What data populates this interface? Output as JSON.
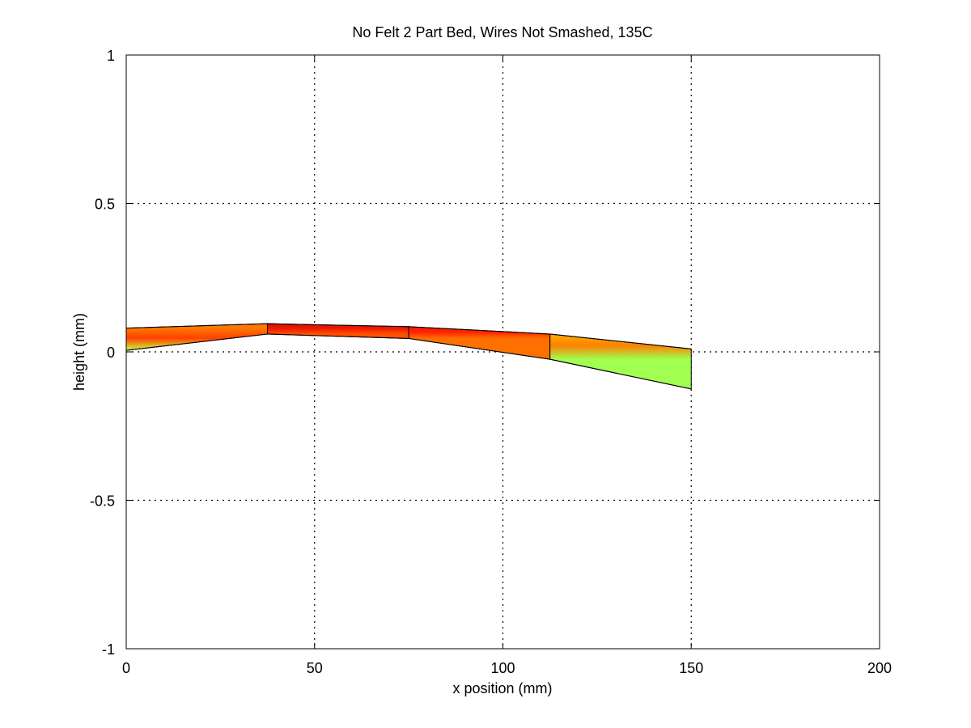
{
  "chart_data": {
    "type": "area",
    "title": "No Felt 2 Part  Bed, Wires Not Smashed, 135C",
    "xlabel": "x position (mm)",
    "ylabel": "height (mm)",
    "xlim": [
      0,
      200
    ],
    "ylim": [
      -1,
      1
    ],
    "xticks": [
      0,
      50,
      100,
      150,
      200
    ],
    "yticks": [
      -1,
      -0.5,
      0,
      0.5,
      1
    ],
    "xtick_labels": [
      "0",
      "50",
      "100",
      "150",
      "200"
    ],
    "ytick_labels": [
      "-1",
      "-0.5",
      "0",
      "0.5",
      "1"
    ],
    "grid": true,
    "grid_style": "dotted",
    "x_nodes": [
      0,
      37.5,
      75,
      112.5,
      150
    ],
    "surfaces": [
      {
        "name": "bottom",
        "values": [
          0.005,
          0.06,
          0.045,
          -0.025,
          -0.125
        ]
      },
      {
        "name": "top",
        "values": [
          0.08,
          0.095,
          0.085,
          0.06,
          0.01
        ]
      }
    ],
    "patches": [
      {
        "x": [
          0,
          0,
          37.5,
          37.5
        ],
        "y": [
          0.005,
          0.08,
          0.095,
          0.06
        ],
        "colors": [
          "#c8ff3c",
          "#ff7800",
          "#ff4000",
          "#ff9000"
        ]
      },
      {
        "x": [
          37.5,
          37.5,
          75,
          75
        ],
        "y": [
          0.06,
          0.095,
          0.085,
          0.045
        ],
        "colors": [
          "#ff5000",
          "#cc1800",
          "#ee1800",
          "#ff6000"
        ]
      },
      {
        "x": [
          75,
          75,
          112.5,
          112.5
        ],
        "y": [
          0.045,
          0.085,
          0.06,
          -0.025
        ],
        "colors": [
          "#ff7000",
          "#ff1a00",
          "#ff2200",
          "#ff8800"
        ]
      },
      {
        "x": [
          112.5,
          112.5,
          150,
          150
        ],
        "y": [
          -0.025,
          0.06,
          0.01,
          -0.125
        ],
        "colors": [
          "#a0ff50",
          "#ffb000",
          "#ff8000",
          "#a8ff55"
        ]
      }
    ],
    "colors": {
      "axis": "#000000",
      "grid": "#000000",
      "edge": "#000000"
    }
  }
}
